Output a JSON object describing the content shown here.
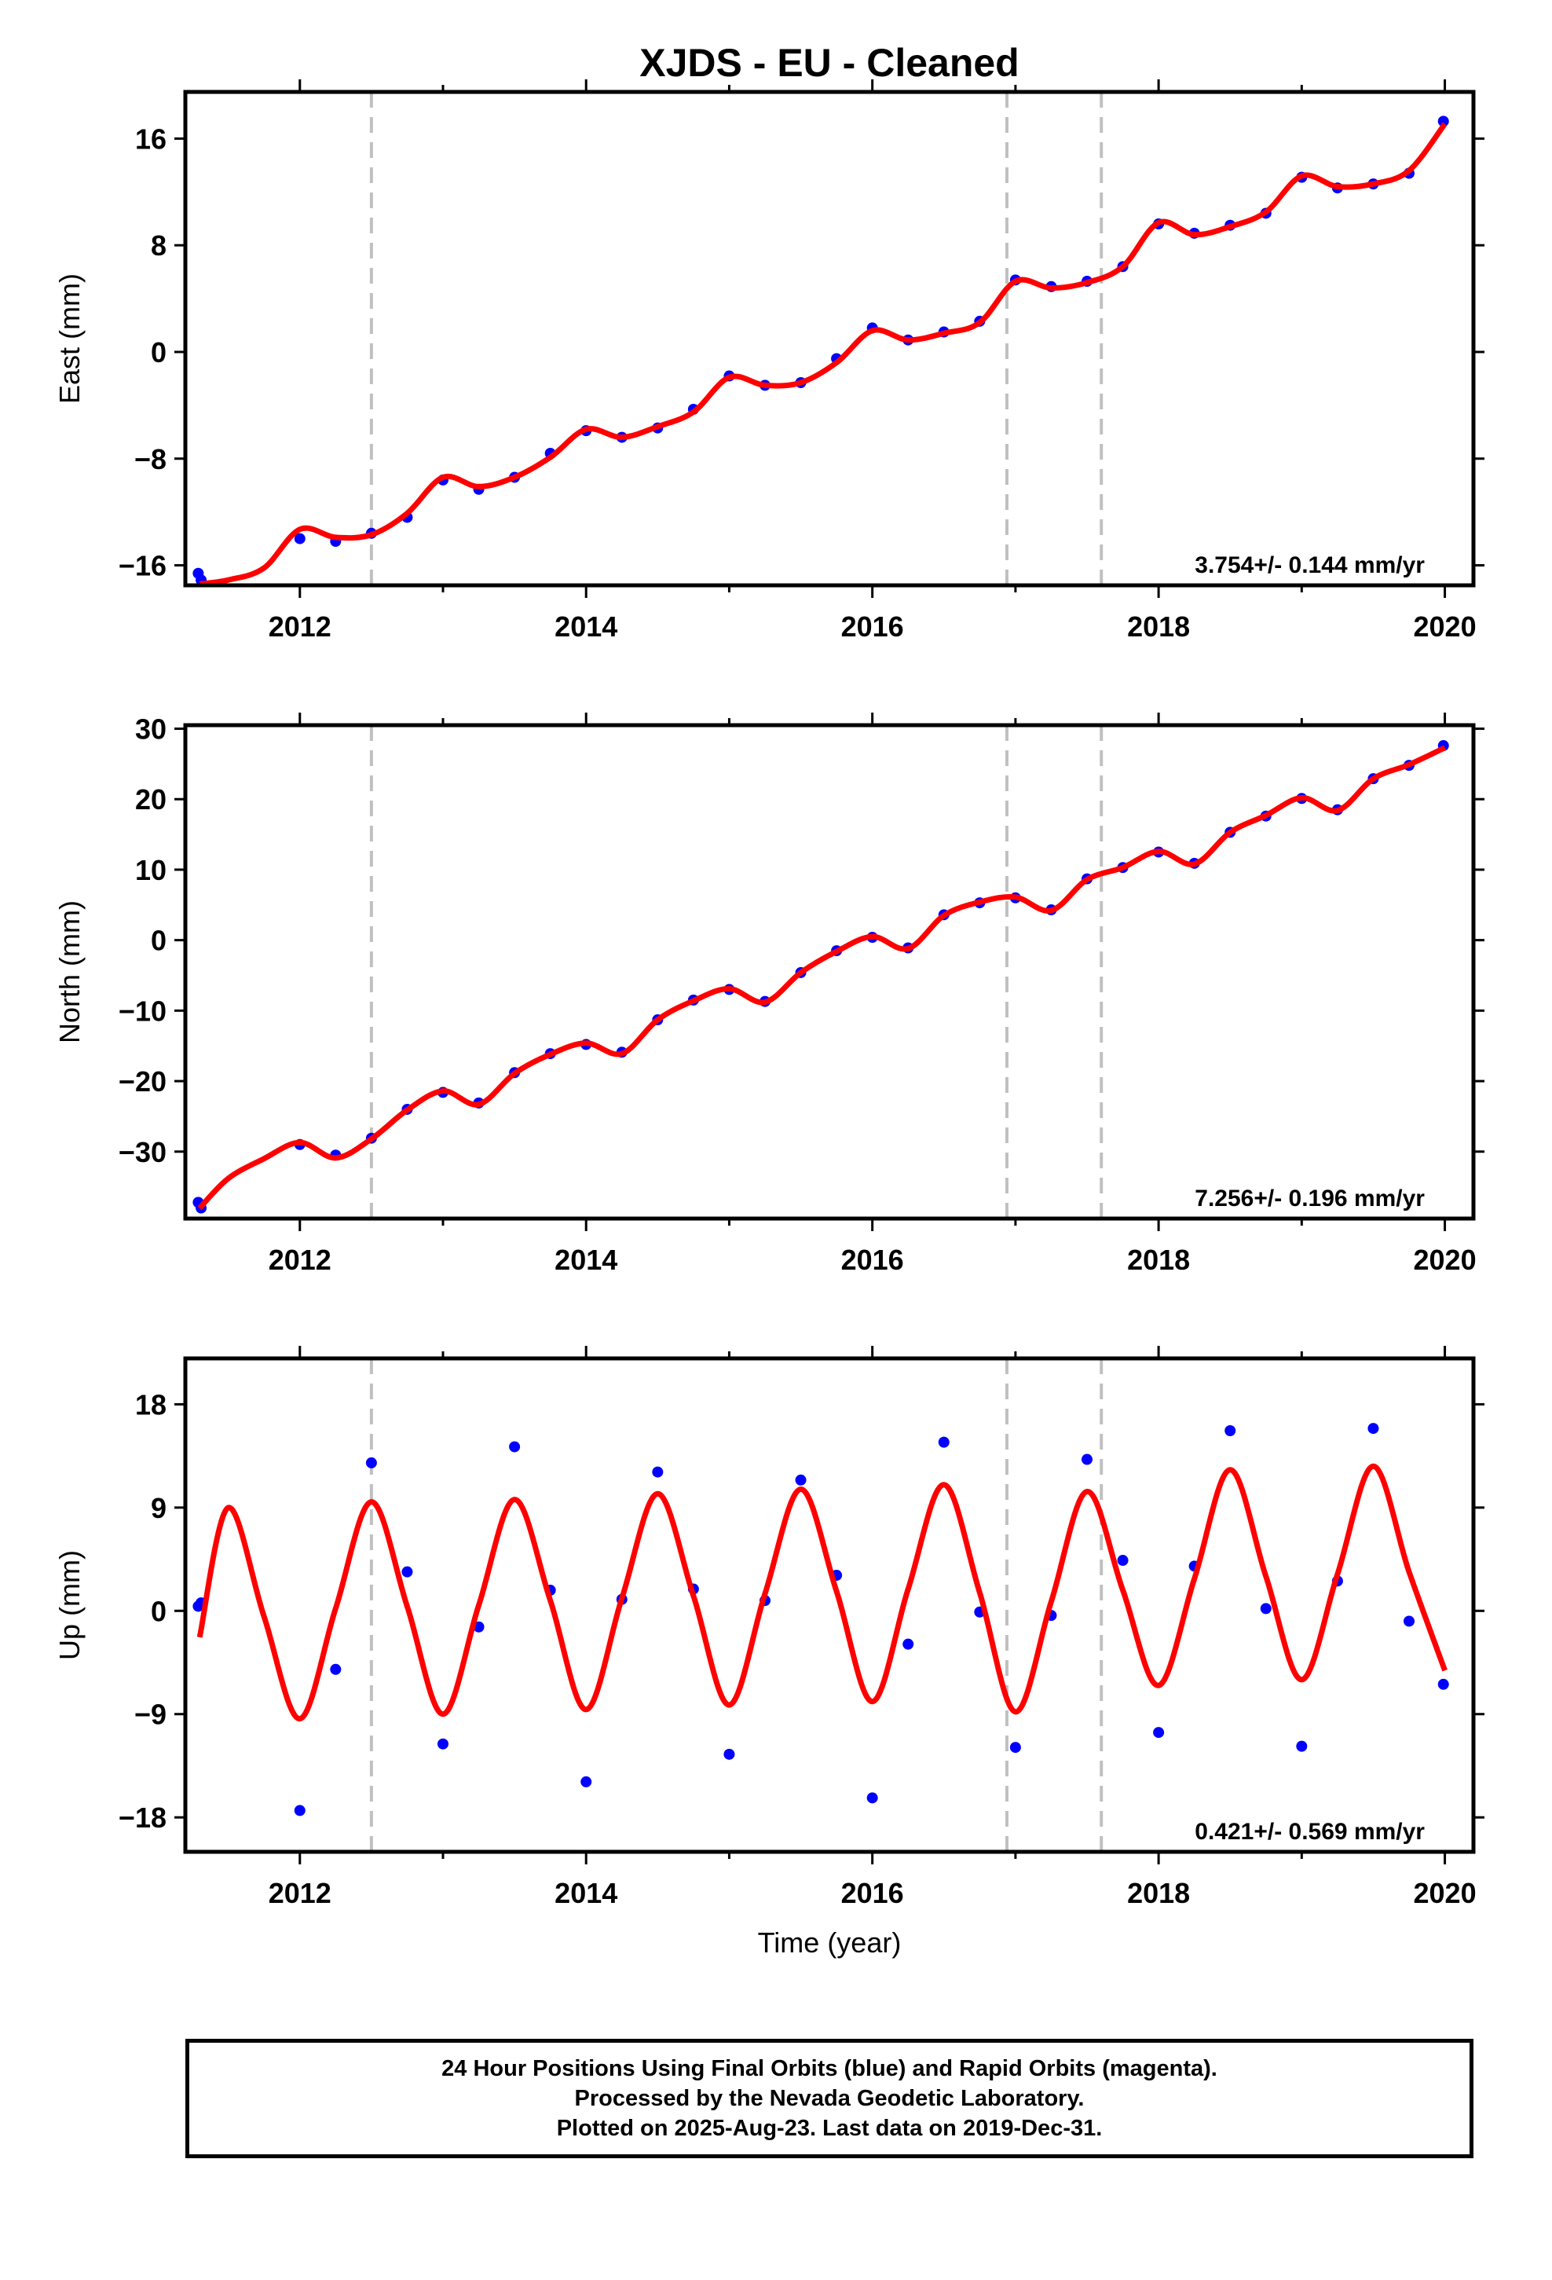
{
  "chart_data": [
    {
      "type": "scatter",
      "title": "XJDS  - EU - Cleaned",
      "ylabel": "East (mm)",
      "xlabel": "",
      "xlim": [
        2011.2,
        2020.2
      ],
      "ylim": [
        -17.5,
        19.5
      ],
      "yticks": [
        -16,
        -8,
        0,
        8,
        16
      ],
      "ytick_labels": [
        "−16",
        "−8",
        "0",
        "8",
        "16"
      ],
      "xticks": [
        2012,
        2014,
        2016,
        2018,
        2020
      ],
      "xtick_labels": [
        "2012",
        "2014",
        "2016",
        "2018",
        "2020"
      ],
      "rate_text": "3.754+/- 0.144 mm/yr",
      "vlines": [
        2012.5,
        2016.94,
        2017.6
      ],
      "series": [
        {
          "kind": "points",
          "color": "#0000ff",
          "x": [
            2011.29,
            2011.31,
            2012.0,
            2012.25,
            2012.5,
            2012.75,
            2013.0,
            2013.25,
            2013.5,
            2013.75,
            2014.0,
            2014.25,
            2014.5,
            2014.75,
            2015.0,
            2015.25,
            2015.5,
            2015.75,
            2016.0,
            2016.25,
            2016.5,
            2016.75,
            2017.0,
            2017.25,
            2017.5,
            2017.75,
            2018.0,
            2018.25,
            2018.5,
            2018.75,
            2019.0,
            2019.25,
            2019.5,
            2019.75,
            2019.99
          ],
          "y": [
            -16.6,
            -17.1,
            -14.0,
            -14.2,
            -13.6,
            -12.4,
            -9.6,
            -10.3,
            -9.4,
            -7.6,
            -5.9,
            -6.4,
            -5.7,
            -4.3,
            -1.8,
            -2.5,
            -2.3,
            -0.5,
            1.8,
            0.9,
            1.5,
            2.3,
            5.4,
            4.9,
            5.3,
            6.4,
            9.6,
            8.9,
            9.5,
            10.4,
            13.1,
            12.3,
            12.6,
            13.4,
            17.3
          ]
        },
        {
          "kind": "fit",
          "color": "#ff0000",
          "x": [
            2011.3,
            2011.5,
            2011.75,
            2012.0,
            2012.25,
            2012.5,
            2012.75,
            2013.0,
            2013.25,
            2013.5,
            2013.75,
            2014.0,
            2014.25,
            2014.5,
            2014.75,
            2015.0,
            2015.25,
            2015.5,
            2015.75,
            2016.0,
            2016.25,
            2016.5,
            2016.75,
            2017.0,
            2017.25,
            2017.5,
            2017.75,
            2018.0,
            2018.25,
            2018.5,
            2018.75,
            2019.0,
            2019.25,
            2019.5,
            2019.75,
            2020.0
          ],
          "y": [
            -17.4,
            -17.1,
            -16.2,
            -13.3,
            -13.9,
            -13.7,
            -12.1,
            -9.4,
            -10.1,
            -9.4,
            -7.9,
            -5.8,
            -6.4,
            -5.6,
            -4.5,
            -1.9,
            -2.5,
            -2.3,
            -0.8,
            1.6,
            0.9,
            1.4,
            2.2,
            5.3,
            4.8,
            5.2,
            6.4,
            9.7,
            8.8,
            9.4,
            10.5,
            13.2,
            12.4,
            12.6,
            13.6,
            17.1
          ]
        }
      ]
    },
    {
      "type": "scatter",
      "title": "",
      "ylabel": "North (mm)",
      "xlabel": "",
      "xlim": [
        2011.2,
        2020.2
      ],
      "ylim": [
        -39.5,
        30.5
      ],
      "yticks": [
        -30,
        -20,
        -10,
        0,
        10,
        20,
        30
      ],
      "ytick_labels": [
        "−30",
        "−20",
        "−10",
        "0",
        "10",
        "20",
        "30"
      ],
      "xticks": [
        2012,
        2014,
        2016,
        2018,
        2020
      ],
      "xtick_labels": [
        "2012",
        "2014",
        "2016",
        "2018",
        "2020"
      ],
      "rate_text": "7.256+/- 0.196 mm/yr",
      "vlines": [
        2012.5,
        2016.94,
        2017.6
      ],
      "series": [
        {
          "kind": "points",
          "color": "#0000ff",
          "x": [
            2011.29,
            2011.31,
            2012.0,
            2012.25,
            2012.5,
            2012.75,
            2013.0,
            2013.25,
            2013.5,
            2013.75,
            2014.0,
            2014.25,
            2014.5,
            2014.75,
            2015.0,
            2015.25,
            2015.5,
            2015.75,
            2016.0,
            2016.25,
            2016.5,
            2016.75,
            2017.0,
            2017.25,
            2017.5,
            2017.75,
            2018.0,
            2018.25,
            2018.5,
            2018.75,
            2019.0,
            2019.25,
            2019.5,
            2019.75,
            2019.99
          ],
          "y": [
            -37.2,
            -38.0,
            -29.0,
            -30.5,
            -28.1,
            -24.0,
            -21.6,
            -23.1,
            -18.8,
            -16.1,
            -14.8,
            -15.9,
            -11.3,
            -8.5,
            -7.0,
            -8.7,
            -4.6,
            -1.5,
            0.4,
            -1.1,
            3.6,
            5.3,
            6.0,
            4.3,
            8.7,
            10.3,
            12.5,
            10.9,
            15.3,
            17.6,
            20.1,
            18.5,
            22.9,
            24.8,
            27.6
          ]
        },
        {
          "kind": "fit",
          "color": "#ff0000",
          "x": [
            2011.3,
            2011.5,
            2011.75,
            2012.0,
            2012.25,
            2012.5,
            2012.75,
            2013.0,
            2013.25,
            2013.5,
            2013.75,
            2014.0,
            2014.25,
            2014.5,
            2014.75,
            2015.0,
            2015.25,
            2015.5,
            2015.75,
            2016.0,
            2016.25,
            2016.5,
            2016.75,
            2017.0,
            2017.25,
            2017.5,
            2017.75,
            2018.0,
            2018.25,
            2018.5,
            2018.75,
            2019.0,
            2019.25,
            2019.5,
            2019.75,
            2020.0
          ],
          "y": [
            -38.0,
            -33.8,
            -31.0,
            -28.7,
            -30.9,
            -28.2,
            -24.1,
            -21.4,
            -23.3,
            -18.9,
            -16.2,
            -14.6,
            -16.1,
            -11.3,
            -8.6,
            -6.9,
            -8.8,
            -4.6,
            -1.6,
            0.5,
            -1.2,
            3.5,
            5.4,
            6.1,
            4.2,
            8.6,
            10.3,
            12.6,
            10.8,
            15.3,
            17.7,
            20.2,
            18.4,
            22.9,
            24.9,
            27.3
          ]
        }
      ]
    },
    {
      "type": "scatter",
      "title": "",
      "ylabel": "Up (mm)",
      "xlabel": "Time (year)",
      "xlim": [
        2011.2,
        2020.2
      ],
      "ylim": [
        -21,
        22
      ],
      "yticks": [
        -18,
        -9,
        0,
        9,
        18
      ],
      "ytick_labels": [
        "−18",
        "−9",
        "0",
        "9",
        "18"
      ],
      "xticks": [
        2012,
        2014,
        2016,
        2018,
        2020
      ],
      "xtick_labels": [
        "2012",
        "2014",
        "2016",
        "2018",
        "2020"
      ],
      "rate_text": "0.421+/- 0.569 mm/yr",
      "vlines": [
        2012.5,
        2016.94,
        2017.6
      ],
      "series": [
        {
          "kind": "points",
          "color": "#0000ff",
          "x": [
            2011.29,
            2011.31,
            2012.0,
            2012.25,
            2012.5,
            2012.75,
            2013.0,
            2013.25,
            2013.5,
            2013.75,
            2014.0,
            2014.25,
            2014.5,
            2014.75,
            2015.0,
            2015.25,
            2015.5,
            2015.75,
            2016.0,
            2016.25,
            2016.5,
            2016.75,
            2017.0,
            2017.25,
            2017.5,
            2017.75,
            2018.0,
            2018.25,
            2018.5,
            2018.75,
            2019.0,
            2019.25,
            2019.5,
            2019.75,
            2019.99
          ],
          "y": [
            0.4,
            0.7,
            -17.4,
            -5.1,
            12.9,
            3.4,
            -11.6,
            -1.4,
            14.3,
            1.8,
            -14.9,
            1.0,
            12.1,
            1.9,
            -12.5,
            0.9,
            11.4,
            3.1,
            -16.3,
            -2.9,
            14.7,
            -0.1,
            -11.9,
            -0.4,
            13.2,
            4.4,
            -10.6,
            3.9,
            15.7,
            0.2,
            -11.8,
            2.6,
            15.9,
            -0.9,
            -6.4
          ]
        },
        {
          "kind": "fit",
          "color": "#ff0000",
          "x": [
            2011.3,
            2011.5,
            2011.75,
            2012.0,
            2012.25,
            2012.5,
            2012.75,
            2013.0,
            2013.25,
            2013.5,
            2013.75,
            2014.0,
            2014.25,
            2014.5,
            2014.75,
            2015.0,
            2015.25,
            2015.5,
            2015.75,
            2016.0,
            2016.25,
            2016.5,
            2016.75,
            2017.0,
            2017.25,
            2017.5,
            2017.75,
            2018.0,
            2018.25,
            2018.5,
            2018.75,
            2019.0,
            2019.25,
            2019.5,
            2019.75,
            2020.0
          ],
          "y": [
            -2.3,
            9.0,
            -0.5,
            -9.4,
            0.2,
            9.5,
            0.4,
            -9.0,
            0.5,
            9.7,
            0.9,
            -8.6,
            1.1,
            10.2,
            1.3,
            -8.2,
            1.5,
            10.6,
            1.7,
            -7.9,
            1.9,
            11.0,
            1.6,
            -8.8,
            0.8,
            10.4,
            1.8,
            -6.5,
            2.8,
            12.3,
            3.0,
            -6.0,
            3.2,
            12.6,
            3.4,
            -5.2
          ]
        }
      ]
    }
  ],
  "footer": {
    "line1": "24 Hour Positions Using Final Orbits (blue) and Rapid Orbits (magenta).",
    "line2": "Processed by the Nevada Geodetic Laboratory.",
    "line3": "Plotted on 2025-Aug-23. Last data on 2019-Dec-31."
  }
}
